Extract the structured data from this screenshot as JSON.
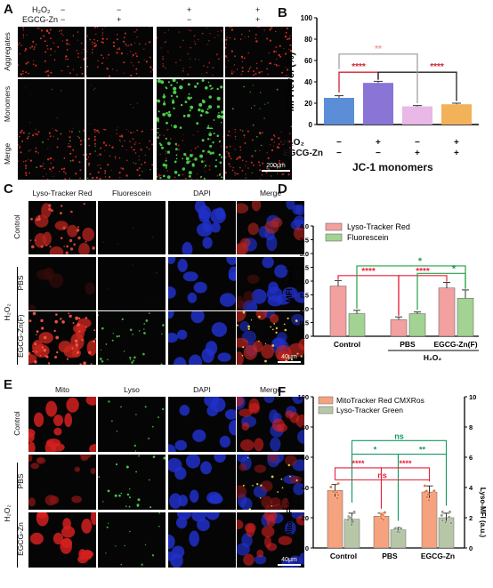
{
  "panelA": {
    "label": "A",
    "row_h2o": "H₂O₂",
    "row_egcg": "EGCG-Zn",
    "h2o_signs": [
      "−",
      "−",
      "+",
      "+"
    ],
    "egcg_signs": [
      "−",
      "+",
      "−",
      "+"
    ],
    "rows": [
      "Aggregates",
      "Monomers",
      "Merge"
    ],
    "scale": "200μm"
  },
  "panelB": {
    "label": "B",
    "ylabel": "MFI level (%)",
    "xlabel": "JC-1 monomers",
    "row_h2o": "H₂O₂",
    "row_egcg": "EGCG-Zn",
    "h2o_signs": [
      "−",
      "+",
      "−",
      "+"
    ],
    "egcg_signs": [
      "−",
      "−",
      "+",
      "+"
    ],
    "yticks": [
      "0",
      "20",
      "40",
      "60",
      "80",
      "100"
    ],
    "sig": [
      "****",
      "****",
      "**"
    ]
  },
  "panelC": {
    "label": "C",
    "cols": [
      "Lyso-Tracker Red",
      "Fluorescein",
      "DAPI",
      "Merge"
    ],
    "rows": [
      "Control",
      "PBS",
      "EGCG-Zn(F)"
    ],
    "group": "H₂O₂",
    "scale": "40μm"
  },
  "panelD": {
    "label": "D",
    "ylabel": "MFI (a.u.)",
    "legend": [
      "Lyso-Tracker Red",
      "Fluorescein"
    ],
    "yticks": [
      "0.0",
      "0.5",
      "1.0",
      "1.5",
      "2.0",
      "2.5",
      "3.0",
      "3.5",
      "4.0"
    ],
    "xcats": [
      "Control",
      "PBS",
      "EGCG-Zn(F)"
    ],
    "group": "H₂O₂",
    "sig": [
      "****",
      "****",
      "*",
      "*"
    ]
  },
  "panelE": {
    "label": "E",
    "cols": [
      "Mito",
      "Lyso",
      "DAPI",
      "Merge"
    ],
    "rows": [
      "Control",
      "PBS",
      "EGCG-Zn"
    ],
    "group": "H₂O₂",
    "scale": "40μm"
  },
  "panelF": {
    "label": "F",
    "ylabel_left": "Mito-MFI (a.u.)",
    "ylabel_right": "Lyso-MFI (a.u.)",
    "legend": [
      "MitoTracker Red CMXRos",
      "Lyso-Tracker Green"
    ],
    "yticks_left": [
      "0",
      "20",
      "40",
      "60",
      "80",
      "100"
    ],
    "yticks_right": [
      "0",
      "2",
      "4",
      "6",
      "8",
      "10"
    ],
    "xcats": [
      "Control",
      "PBS",
      "EGCG-Zn"
    ],
    "sig": [
      "ns",
      "*",
      "**",
      "****",
      "ns",
      "****"
    ]
  },
  "chart_data": [
    {
      "type": "bar",
      "categories": [
        "−/−",
        "+/−",
        "−/+",
        "+/+"
      ],
      "values": [
        25,
        39,
        17,
        19
      ],
      "errors": [
        2,
        1.5,
        0.8,
        1
      ],
      "colors": [
        "#5b8ed6",
        "#8a74d6",
        "#e8b8e6",
        "#f2b25a"
      ],
      "title": "",
      "xlabel": "JC-1 monomers",
      "ylabel": "MFI level (%)",
      "ylim": [
        0,
        100
      ]
    },
    {
      "type": "bar",
      "categories": [
        "Control",
        "PBS",
        "EGCG-Zn(F)"
      ],
      "series": [
        {
          "name": "Lyso-Tracker Red",
          "values": [
            1.82,
            0.6,
            1.75
          ],
          "errors": [
            0.2,
            0.1,
            0.2
          ],
          "color": "#f2a0a0"
        },
        {
          "name": "Fluorescein",
          "values": [
            0.82,
            0.82,
            1.38
          ],
          "errors": [
            0.12,
            0.06,
            0.3
          ],
          "color": "#a3d393"
        }
      ],
      "xlabel": "",
      "ylabel": "MFI (a.u.)",
      "ylim": [
        0,
        4
      ]
    },
    {
      "type": "bar",
      "categories": [
        "Control",
        "PBS",
        "EGCG-Zn"
      ],
      "series": [
        {
          "name": "MitoTracker Red CMXRos",
          "axis": "left",
          "values": [
            38,
            21,
            37
          ],
          "errors": [
            4,
            2,
            4
          ],
          "color": "#f5a27e"
        },
        {
          "name": "Lyso-Tracker Green",
          "axis": "right",
          "values": [
            1.9,
            1.2,
            2.0
          ],
          "errors": [
            0.4,
            0.15,
            0.3
          ],
          "color": "#b8c6a8"
        }
      ],
      "ylabel_left": "Mito-MFI (a.u.)",
      "ylabel_right": "Lyso-MFI (a.u.)",
      "ylim_left": [
        0,
        100
      ],
      "ylim_right": [
        0,
        10
      ]
    }
  ]
}
